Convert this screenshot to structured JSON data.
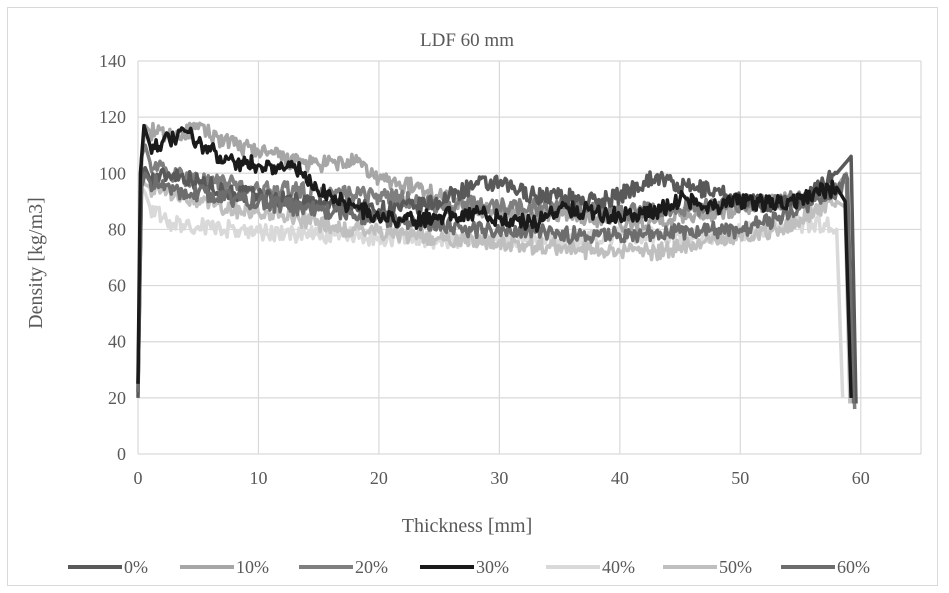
{
  "chart_data": {
    "type": "line",
    "title": "LDF 60 mm",
    "xlabel": "Thickness [mm]",
    "ylabel": "Density [kg/m3]",
    "xlim": [
      0,
      65
    ],
    "ylim": [
      0,
      140
    ],
    "x_ticks": [
      "0",
      "10",
      "20",
      "30",
      "40",
      "50",
      "60"
    ],
    "y_ticks": [
      "0",
      "20",
      "40",
      "60",
      "80",
      "100",
      "120",
      "140"
    ],
    "grid": true,
    "legend_position": "bottom",
    "series": [
      {
        "name": "0%",
        "color": "#595959",
        "width": 3.5,
        "x": [
          0.0,
          0.3,
          0.6,
          1,
          3,
          5,
          8,
          10,
          13,
          15,
          18,
          20,
          23,
          25,
          28,
          30,
          33,
          35,
          38,
          40,
          42,
          43,
          45,
          48,
          50,
          53,
          55,
          58,
          58.8,
          59.2,
          59.6
        ],
        "y": [
          20,
          100,
          102,
          98,
          100,
          97,
          93,
          92,
          90,
          89,
          88,
          87,
          88,
          90,
          96,
          96,
          92,
          92,
          90,
          92,
          97,
          99,
          95,
          94,
          90,
          89,
          90,
          100,
          104,
          106,
          18
        ]
      },
      {
        "name": "10%",
        "color": "#a6a6a6",
        "width": 3.5,
        "x": [
          0.0,
          0.3,
          0.6,
          1,
          3,
          5,
          8,
          10,
          13,
          15,
          18,
          20,
          23,
          25,
          28,
          30,
          33,
          35,
          38,
          40,
          43,
          45,
          48,
          50,
          53,
          55,
          58,
          58.8,
          59.2
        ],
        "y": [
          25,
          105,
          117,
          115,
          113,
          116,
          110,
          108,
          104,
          103,
          104,
          98,
          95,
          92,
          88,
          86,
          84,
          86,
          84,
          82,
          83,
          85,
          86,
          88,
          90,
          91,
          95,
          100,
          20
        ]
      },
      {
        "name": "20%",
        "color": "#7f7f7f",
        "width": 3.5,
        "x": [
          0.0,
          0.3,
          0.6,
          1,
          3,
          5,
          8,
          10,
          13,
          15,
          18,
          20,
          23,
          25,
          28,
          30,
          33,
          35,
          38,
          40,
          43,
          45,
          48,
          50,
          53,
          55,
          58,
          58.8,
          59.5
        ],
        "y": [
          22,
          106,
          110,
          104,
          99,
          98,
          96,
          94,
          94,
          93,
          92,
          92,
          90,
          88,
          89,
          88,
          88,
          88,
          87,
          86,
          87,
          87,
          88,
          89,
          90,
          91,
          94,
          98,
          16
        ]
      },
      {
        "name": "30%",
        "color": "#1a1a1a",
        "width": 3.5,
        "x": [
          0.0,
          0.2,
          0.5,
          1,
          2,
          3,
          4,
          5,
          6,
          8,
          10,
          12,
          13,
          14,
          16,
          18,
          20,
          23,
          25,
          28,
          30,
          33,
          35,
          38,
          40,
          43,
          45,
          48,
          50,
          53,
          55,
          58,
          58.7,
          59.2
        ],
        "y": [
          25,
          100,
          117,
          110,
          111,
          112,
          115,
          111,
          108,
          104,
          103,
          102,
          103,
          97,
          92,
          88,
          84,
          83,
          85,
          86,
          84,
          82,
          88,
          86,
          85,
          86,
          91,
          88,
          90,
          89,
          91,
          95,
          90,
          20
        ]
      },
      {
        "name": "40%",
        "color": "#d9d9d9",
        "width": 3.5,
        "x": [
          0.0,
          0.3,
          0.6,
          1,
          2,
          3,
          5,
          8,
          10,
          13,
          15,
          18,
          20,
          23,
          25,
          28,
          30,
          33,
          35,
          38,
          40,
          43,
          45,
          48,
          50,
          53,
          55,
          57,
          58,
          58.5
        ],
        "y": [
          30,
          95,
          93,
          88,
          84,
          82,
          81,
          80,
          79,
          78,
          78,
          78,
          77,
          77,
          76,
          77,
          76,
          77,
          76,
          77,
          78,
          78,
          77,
          78,
          79,
          81,
          82,
          82,
          80,
          20
        ]
      },
      {
        "name": "50%",
        "color": "#bfbfbf",
        "width": 3.5,
        "x": [
          0.0,
          0.3,
          0.6,
          1,
          3,
          5,
          8,
          10,
          13,
          15,
          18,
          20,
          23,
          25,
          28,
          30,
          33,
          35,
          38,
          40,
          43,
          45,
          48,
          50,
          53,
          55,
          58,
          58.7,
          59.1
        ],
        "y": [
          25,
          98,
          96,
          95,
          92,
          90,
          87,
          86,
          84,
          82,
          80,
          79,
          78,
          77,
          76,
          76,
          74,
          74,
          72,
          72,
          72,
          74,
          76,
          78,
          80,
          84,
          90,
          88,
          18
        ]
      },
      {
        "name": "60%",
        "color": "#6d6d6d",
        "width": 3.5,
        "x": [
          0.0,
          0.3,
          0.6,
          1,
          3,
          5,
          8,
          10,
          13,
          15,
          18,
          20,
          23,
          25,
          28,
          30,
          33,
          35,
          38,
          40,
          43,
          45,
          48,
          50,
          53,
          55,
          58,
          58.9,
          59.4
        ],
        "y": [
          22,
          95,
          100,
          97,
          94,
          93,
          91,
          90,
          88,
          87,
          85,
          84,
          83,
          82,
          80,
          79,
          79,
          78,
          78,
          78,
          79,
          79,
          80,
          80,
          84,
          88,
          94,
          98,
          18
        ]
      }
    ]
  }
}
